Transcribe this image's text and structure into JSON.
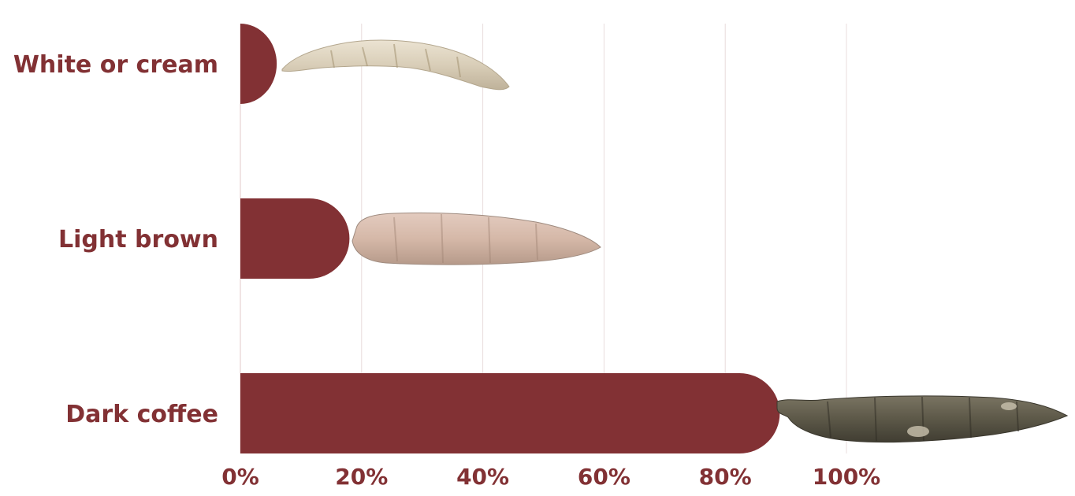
{
  "colors": {
    "bar": "#823134",
    "text": "#823134",
    "grid": "#e8dcdc",
    "axis": "#e3c9c9"
  },
  "chart_data": {
    "type": "bar",
    "orientation": "horizontal",
    "title": "",
    "xlabel": "",
    "ylabel": "",
    "categories": [
      "White or cream",
      "Light brown",
      "Dark coffee"
    ],
    "values": [
      6,
      18,
      89
    ],
    "value_unit": "%",
    "xlim": [
      0,
      100
    ],
    "x_ticks": [
      0,
      20,
      40,
      60,
      80,
      100
    ],
    "x_tick_labels": [
      "0%",
      "20%",
      "40%",
      "60%",
      "80%",
      "100%"
    ],
    "grid": "vertical",
    "legend": "none",
    "bar_decoration": [
      "cassava-root-white-image",
      "cassava-root-light-brown-image",
      "cassava-root-dark-coffee-image"
    ]
  }
}
